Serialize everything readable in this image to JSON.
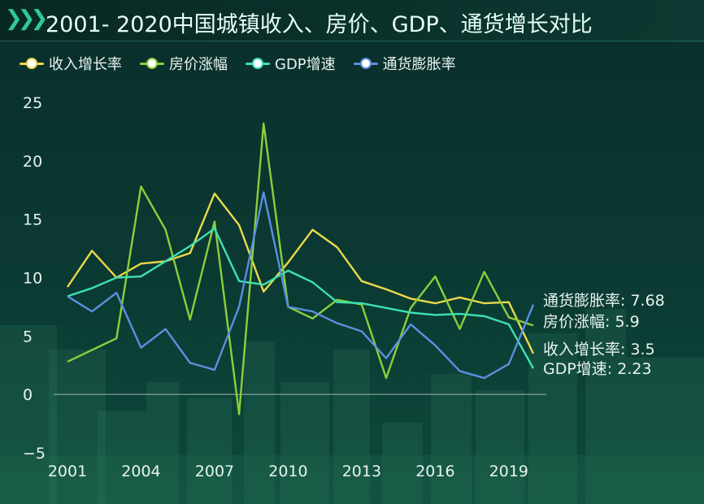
{
  "title": "2001- 2020中国城镇收入、房价、GDP、通货增长对比",
  "icons": {
    "title_chevrons": "double-chevron-right-icon"
  },
  "colors": {
    "background": "#0b3a33",
    "axis_text": "#e8f3ef",
    "accent": "#30c99a"
  },
  "chart_data": {
    "type": "line",
    "title": "2001- 2020中国城镇收入、房价、GDP、通货增长对比",
    "x": [
      2001,
      2002,
      2003,
      2004,
      2005,
      2006,
      2007,
      2008,
      2009,
      2010,
      2011,
      2012,
      2013,
      2014,
      2015,
      2016,
      2017,
      2018,
      2019,
      2020
    ],
    "x_ticks": [
      "2001",
      "2004",
      "2007",
      "2010",
      "2013",
      "2016",
      "2019"
    ],
    "y_ticks": [
      "−5",
      "0",
      "5",
      "10",
      "15",
      "20",
      "25"
    ],
    "ylim": [
      -5,
      25
    ],
    "grid": false,
    "legend_position": "top-left",
    "series": [
      {
        "name": "收入增长率",
        "color": "#ecd94a",
        "values": [
          9.2,
          12.3,
          10.0,
          11.2,
          11.4,
          12.1,
          17.2,
          14.5,
          8.8,
          11.3,
          14.1,
          12.6,
          9.7,
          9.0,
          8.2,
          7.8,
          8.3,
          7.8,
          7.9,
          3.5
        ]
      },
      {
        "name": "房价涨幅",
        "color": "#8ccf3b",
        "values": [
          2.8,
          3.8,
          4.8,
          17.8,
          14.1,
          6.4,
          14.8,
          -1.7,
          23.2,
          7.5,
          6.5,
          8.1,
          7.7,
          1.4,
          7.4,
          10.1,
          5.6,
          10.5,
          6.6,
          5.9
        ]
      },
      {
        "name": "GDP增速",
        "color": "#3ee0b5",
        "values": [
          8.4,
          9.1,
          10.0,
          10.1,
          11.4,
          12.7,
          14.2,
          9.7,
          9.4,
          10.6,
          9.6,
          7.9,
          7.8,
          7.4,
          7.0,
          6.8,
          6.9,
          6.7,
          6.0,
          2.23
        ]
      },
      {
        "name": "通货膨胀率",
        "color": "#5b8fe0",
        "values": [
          8.4,
          7.1,
          8.7,
          4.0,
          5.6,
          2.7,
          2.1,
          7.5,
          17.3,
          7.5,
          7.1,
          6.1,
          5.4,
          3.1,
          6.0,
          4.2,
          2.0,
          1.4,
          2.6,
          7.68
        ]
      }
    ],
    "end_labels": [
      {
        "series": "通货膨胀率",
        "text": "通货膨胀率: 7.68"
      },
      {
        "series": "房价涨幅",
        "text": "房价涨幅: 5.9"
      },
      {
        "series": "收入增长率",
        "text": "收入增长率: 3.5"
      },
      {
        "series": "GDP增速",
        "text": "GDP增速: 2.23"
      }
    ]
  }
}
